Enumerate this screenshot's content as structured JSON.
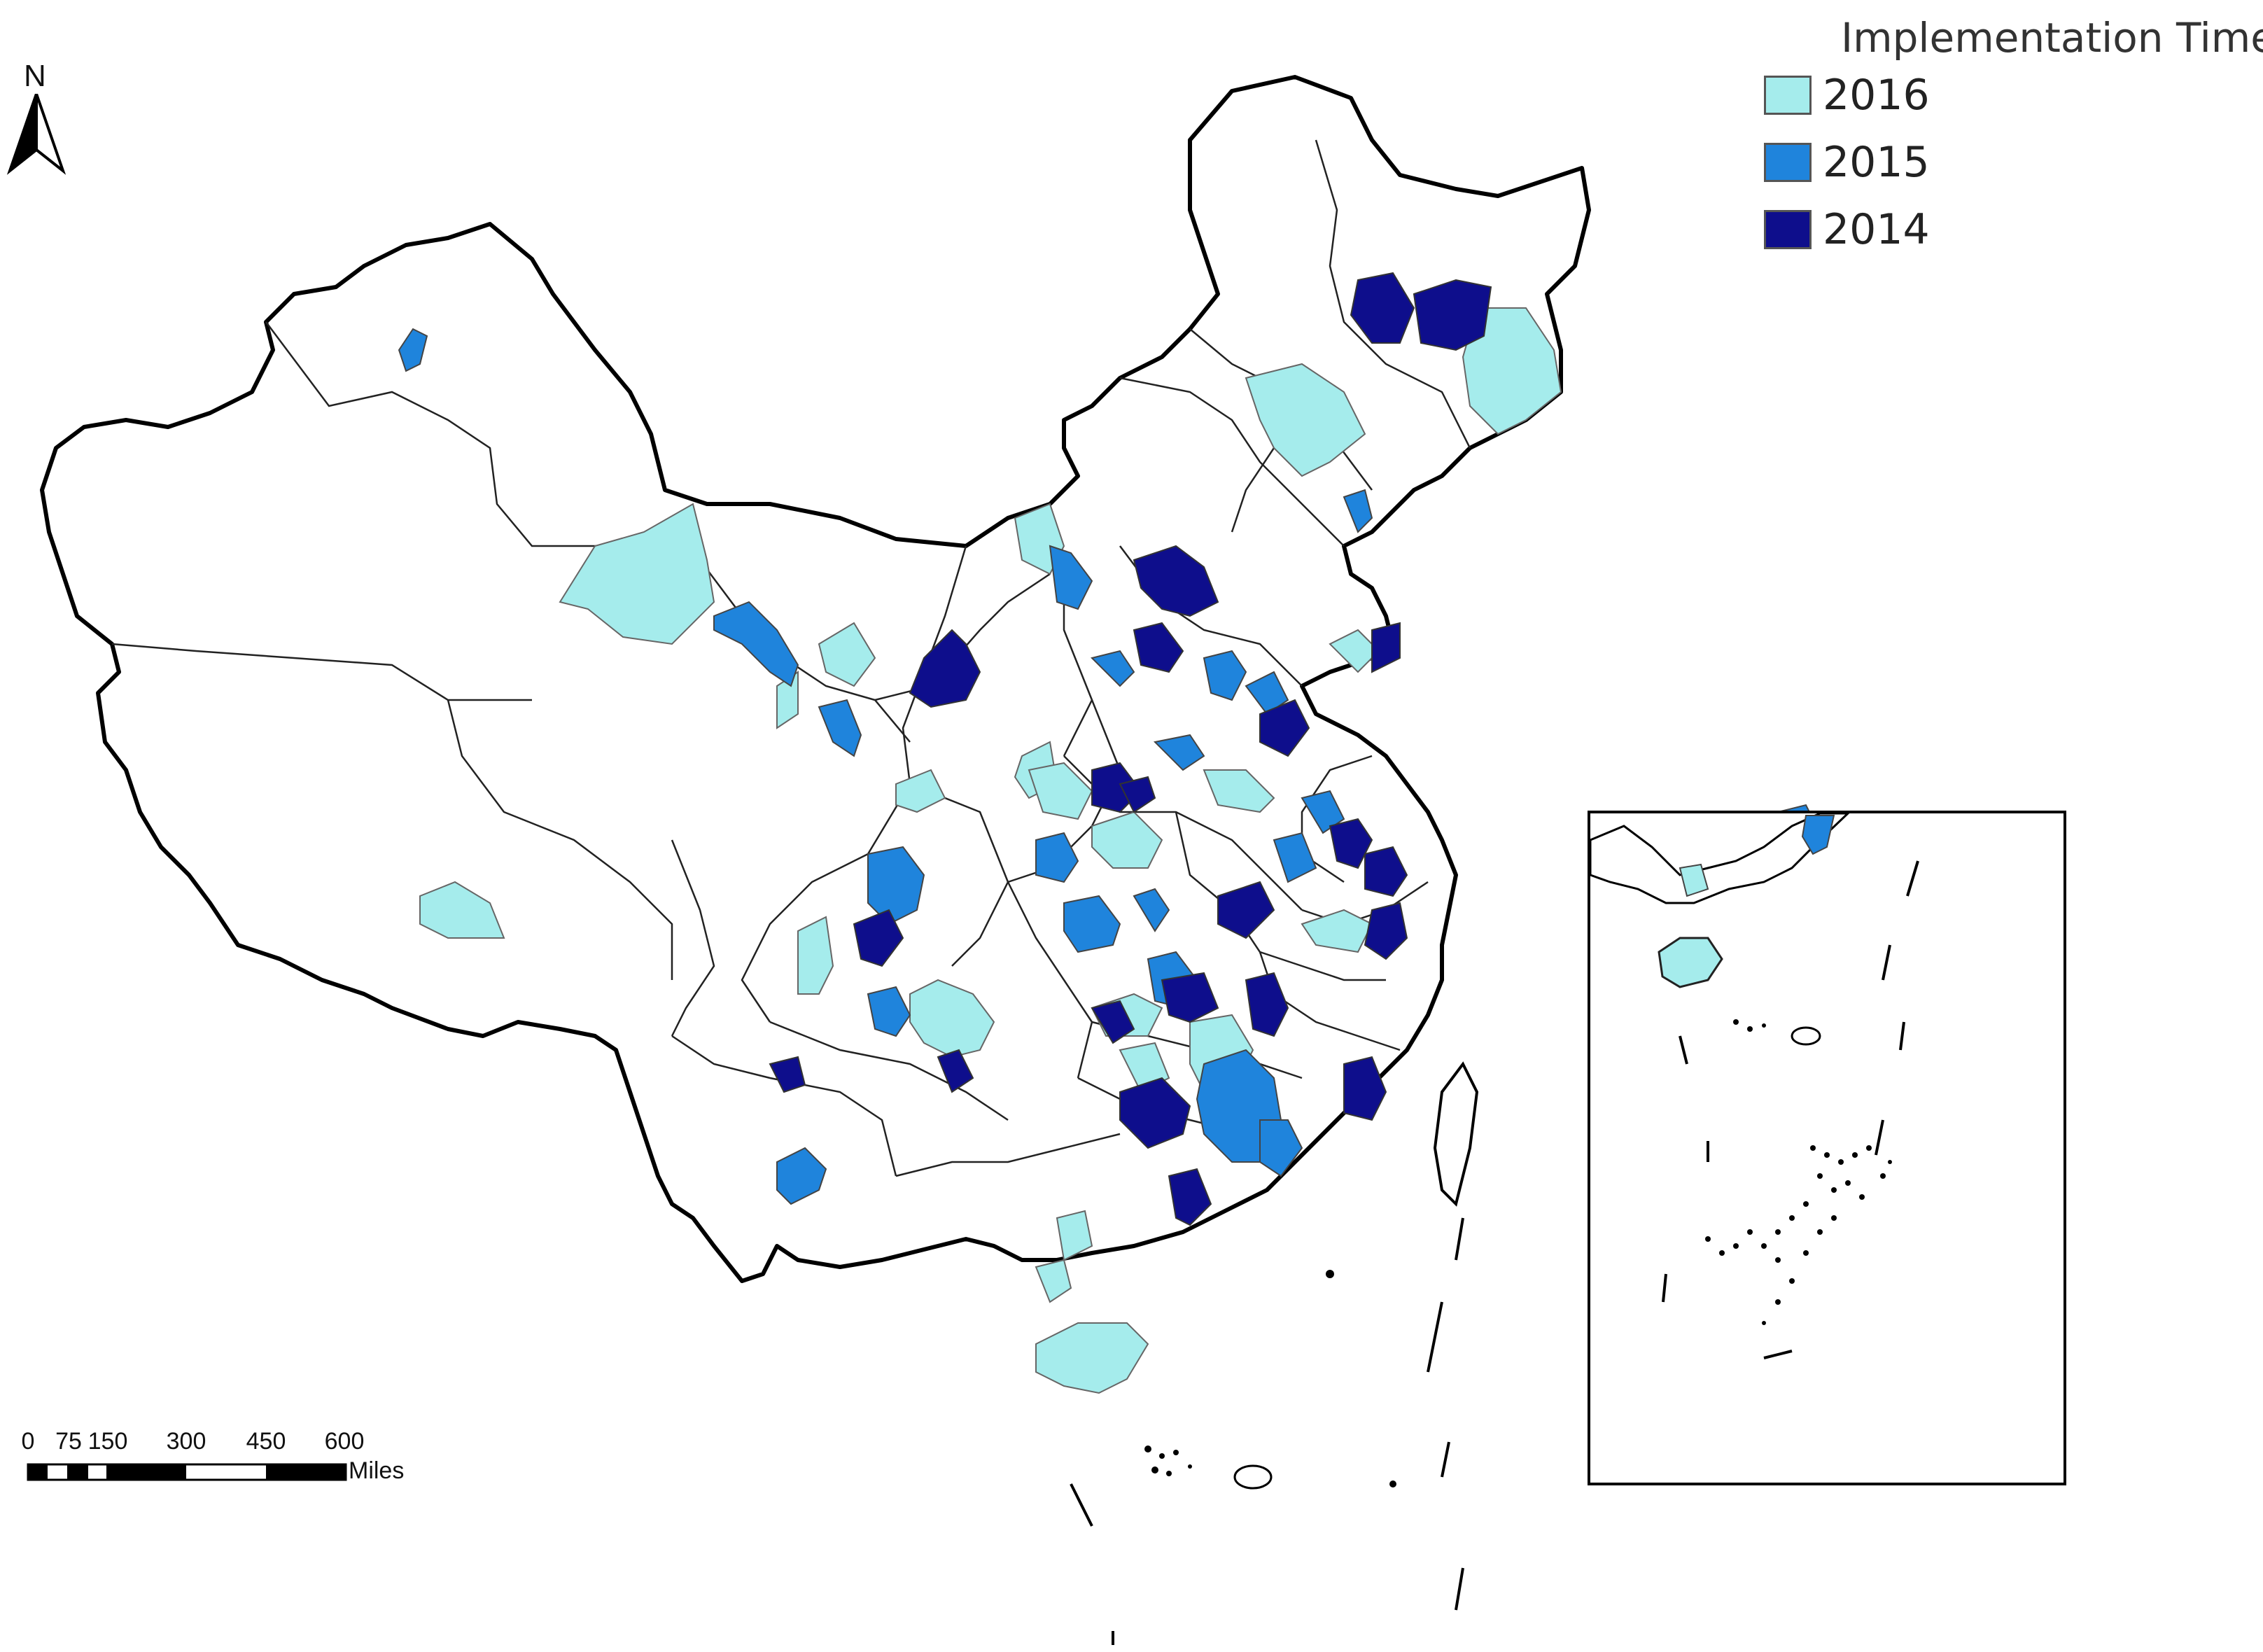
{
  "legend": {
    "title": "Implementation Time",
    "items": [
      {
        "label": "2016",
        "color": "#a5ecec"
      },
      {
        "label": "2015",
        "color": "#1f84dc"
      },
      {
        "label": "2014",
        "color": "#0e0e8c"
      }
    ]
  },
  "north_arrow": {
    "letter": "N"
  },
  "scale_bar": {
    "ticks": [
      "0",
      "75",
      "150",
      "300",
      "450",
      "600"
    ],
    "units": "Miles"
  }
}
